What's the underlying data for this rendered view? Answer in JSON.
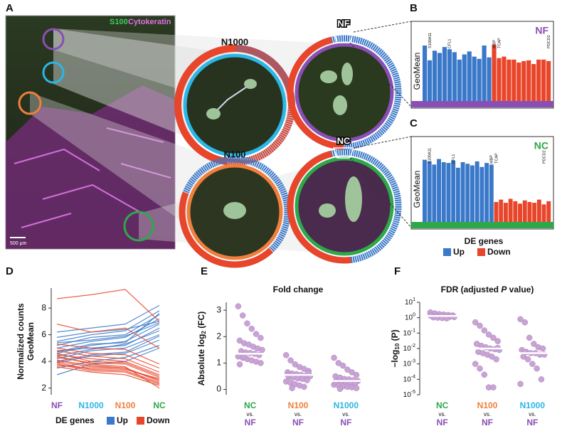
{
  "panel_a": {
    "panel": "A",
    "stains": [
      "S100",
      "Cytokeratin"
    ],
    "scale_bar": "500 µm",
    "regions": [
      "N1000",
      "NF",
      "N100",
      "NC"
    ]
  },
  "chart_data": [
    {
      "type": "bar",
      "panel": "B",
      "title": "NF",
      "title_color": "#8a4fb5",
      "ylabel": "GeoMean",
      "ylim": [
        0,
        10
      ],
      "baseline_color": "#8a4fb5",
      "series": [
        {
          "color": "#3a78c9",
          "values": [
            7.5,
            5.5,
            6.8,
            6.5,
            7.3,
            7,
            6.6,
            5.6,
            6.3,
            6.7,
            6,
            5.7,
            7.5,
            5.9
          ]
        },
        {
          "color": "#e8452a",
          "values": [
            7.6,
            5.8,
            6,
            5.6,
            5.6,
            5.2,
            5.4,
            5.5,
            5,
            5.6,
            5.6,
            5.4
          ]
        }
      ],
      "annotations": [
        {
          "text": "S100A11",
          "index": 1
        },
        {
          "text": "CFL1",
          "index": 5
        },
        {
          "text": "MBP",
          "index": 14
        },
        {
          "text": "TCAP",
          "index": 15
        },
        {
          "text": "PDCD2",
          "index": 25
        }
      ]
    },
    {
      "type": "bar",
      "panel": "C",
      "title": "NC",
      "title_color": "#2ea84a",
      "ylabel": "GeoMean",
      "ylim": [
        0,
        10
      ],
      "baseline_color": "#2ea84a",
      "legend_title": "DE genes",
      "series": [
        {
          "name": "Up",
          "color": "#3a78c9",
          "values": [
            7.8,
            7.6,
            7.2,
            7.9,
            7.5,
            7.4,
            7.7,
            6.8,
            7.5,
            7.3,
            7.1,
            7.6,
            6.9,
            7.4,
            7.2
          ]
        },
        {
          "name": "Down",
          "color": "#e8452a",
          "values": [
            2.5,
            2.8,
            2.4,
            2.9,
            2.6,
            2.3,
            2.7,
            2.5,
            2.4,
            2.8,
            2.2,
            2.6
          ]
        }
      ],
      "annotations": [
        {
          "text": "S100A11",
          "index": 1
        },
        {
          "text": "CFL1",
          "index": 6
        },
        {
          "text": "MBP",
          "index": 14
        },
        {
          "text": "TCAP",
          "index": 15
        },
        {
          "text": "PDCD2",
          "index": 25
        }
      ]
    },
    {
      "type": "line",
      "panel": "D",
      "ylabel": [
        "Normalized counts",
        "GeoMean"
      ],
      "categories": [
        "NF",
        "N1000",
        "N100",
        "NC"
      ],
      "category_colors": [
        "#8a4fb5",
        "#2bb6e6",
        "#f07f3c",
        "#2ea84a"
      ],
      "ylim": [
        1.5,
        9.5
      ],
      "yticks": [
        2,
        4,
        6,
        8
      ],
      "legend_title": "DE genes",
      "series": [
        {
          "name": "Up",
          "color": "#3a78c9",
          "lines": [
            [
              4.6,
              5.2,
              5.5,
              6.8
            ],
            [
              5.0,
              5.5,
              5.8,
              7.2
            ],
            [
              4.2,
              4.8,
              5.0,
              6.0
            ],
            [
              5.5,
              6.0,
              6.3,
              7.8
            ],
            [
              4.8,
              5.0,
              5.2,
              6.5
            ],
            [
              3.9,
              4.4,
              4.6,
              5.6
            ],
            [
              5.2,
              5.8,
              6.0,
              7.5
            ],
            [
              4.4,
              4.9,
              5.3,
              6.3
            ],
            [
              6.2,
              6.5,
              6.8,
              8.2
            ],
            [
              3.5,
              4.0,
              4.3,
              5.2
            ],
            [
              5.8,
              6.2,
              6.4,
              7.0
            ],
            [
              4.0,
              4.5,
              4.7,
              5.9
            ],
            [
              3.0,
              3.8,
              4.0,
              5.0
            ],
            [
              5.4,
              5.6,
              5.9,
              6.9
            ],
            [
              4.7,
              5.3,
              5.4,
              7.6
            ]
          ]
        },
        {
          "name": "Down",
          "color": "#e8452a",
          "lines": [
            [
              4.5,
              4.2,
              4.0,
              3.0
            ],
            [
              4.0,
              3.6,
              3.5,
              2.6
            ],
            [
              3.8,
              3.3,
              3.2,
              2.3
            ],
            [
              5.0,
              4.6,
              4.5,
              3.5
            ],
            [
              4.3,
              3.9,
              3.8,
              2.8
            ],
            [
              3.6,
              3.2,
              3.0,
              2.2
            ],
            [
              4.8,
              4.4,
              4.2,
              3.2
            ],
            [
              4.1,
              3.7,
              3.5,
              2.5
            ],
            [
              5.3,
              5.0,
              4.9,
              3.8
            ],
            [
              3.9,
              3.4,
              3.3,
              2.4
            ],
            [
              8.7,
              9.0,
              9.4,
              7.0
            ],
            [
              6.8,
              6.2,
              6.5,
              5.0
            ],
            [
              4.6,
              4.0,
              3.9,
              2.9
            ],
            [
              3.7,
              3.5,
              3.4,
              2.7
            ],
            [
              4.4,
              3.8,
              3.6,
              2.0
            ]
          ]
        }
      ]
    },
    {
      "type": "scatter",
      "panel": "E",
      "title": [
        "Fold change"
      ],
      "ylabel": [
        "Absolute log",
        "2",
        " (FC)"
      ],
      "ylim": [
        -0.2,
        3.3
      ],
      "yticks": [
        0,
        1,
        2,
        3
      ],
      "vs_label": "vs.",
      "point_color": "#c9a3d6",
      "groups": [
        {
          "name": "NC",
          "color": "#2ea84a",
          "ref": "NF",
          "ref_color": "#8a4fb5",
          "median": 1.35,
          "values": [
            3.15,
            2.8,
            2.5,
            2.3,
            2.1,
            1.95,
            1.85,
            1.75,
            1.7,
            1.62,
            1.55,
            1.5,
            1.45,
            1.4,
            1.38,
            1.35,
            1.3,
            1.25,
            1.2,
            1.15,
            1.1,
            1.05,
            1.0,
            0.95,
            1.25
          ]
        },
        {
          "name": "N100",
          "color": "#f07f3c",
          "ref": "NF",
          "ref_color": "#8a4fb5",
          "median": 0.55,
          "values": [
            1.3,
            1.1,
            0.95,
            0.85,
            0.78,
            0.7,
            0.65,
            0.6,
            0.58,
            0.55,
            0.52,
            0.5,
            0.48,
            0.45,
            0.42,
            0.4,
            0.35,
            0.3,
            0.25,
            0.2,
            0.15,
            0.1,
            0.62,
            0.55,
            0.05
          ]
        },
        {
          "name": "N1000",
          "color": "#2bb6e6",
          "ref": "NF",
          "ref_color": "#8a4fb5",
          "median": 0.32,
          "values": [
            1.2,
            1.0,
            0.9,
            0.75,
            0.65,
            0.55,
            0.5,
            0.45,
            0.4,
            0.38,
            0.35,
            0.32,
            0.3,
            0.28,
            0.25,
            0.22,
            0.2,
            0.18,
            0.15,
            0.12,
            0.1,
            0.08,
            0.05,
            0.3,
            0.02
          ]
        }
      ]
    },
    {
      "type": "scatter",
      "panel": "F",
      "log": true,
      "title": [
        "FDR (adjusted ",
        "P",
        " value)"
      ],
      "ylabel": [
        "−log",
        "10",
        " (P)"
      ],
      "ylim": [
        1e-05,
        10
      ],
      "vs_label": "vs.",
      "point_color": "#c9a3d6",
      "yticks": [
        {
          "value": 1e-05,
          "label": "10",
          "sup": "-5"
        },
        {
          "value": 0.0001,
          "label": "10",
          "sup": "-4"
        },
        {
          "value": 0.001,
          "label": "10",
          "sup": "-3"
        },
        {
          "value": 0.01,
          "label": "10",
          "sup": "-2"
        },
        {
          "value": 0.1,
          "label": "10",
          "sup": "-1"
        },
        {
          "value": 1,
          "label": "10",
          "sup": "0"
        },
        {
          "value": 10,
          "label": "10",
          "sup": "1"
        }
      ],
      "groups": [
        {
          "name": "NC",
          "color": "#2ea84a",
          "ref": "NF",
          "ref_color": "#8a4fb5",
          "median": 1.3,
          "values": [
            2.2,
            1.9,
            1.7,
            1.6,
            1.5,
            1.4,
            1.35,
            1.3,
            1.25,
            1.2,
            1.15,
            1.1,
            1.05,
            1.0,
            0.95,
            0.9,
            1.3,
            1.4
          ]
        },
        {
          "name": "N100",
          "color": "#f07f3c",
          "ref": "NF",
          "ref_color": "#8a4fb5",
          "median": 0.01,
          "values": [
            0.5,
            0.3,
            0.15,
            0.08,
            0.05,
            0.03,
            0.02,
            0.015,
            0.012,
            0.01,
            0.009,
            0.008,
            0.006,
            0.005,
            0.004,
            0.003,
            0.002,
            0.001,
            0.0005,
            0.0002,
            3e-05,
            3e-05,
            0.011,
            0.02
          ]
        },
        {
          "name": "N1000",
          "color": "#2bb6e6",
          "ref": "NF",
          "ref_color": "#8a4fb5",
          "median": 0.005,
          "values": [
            0.8,
            0.5,
            0.05,
            0.02,
            0.012,
            0.01,
            0.008,
            0.006,
            0.005,
            0.005,
            0.004,
            0.004,
            0.003,
            0.002,
            0.001,
            0.0005,
            0.0001,
            5e-05,
            0.006
          ]
        }
      ]
    }
  ]
}
